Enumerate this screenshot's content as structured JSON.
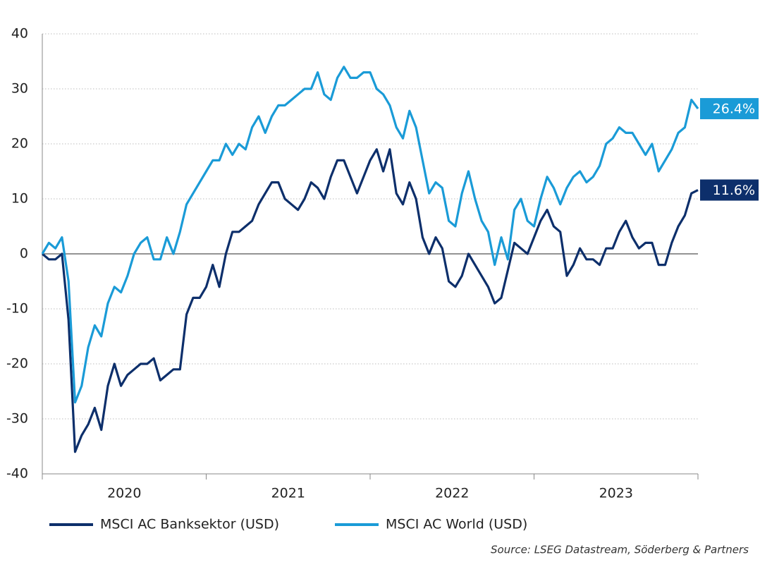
{
  "chart_data": {
    "type": "line",
    "source": "Source: LSEG Datastream, Söderberg & Partners",
    "xlim": [
      2020,
      2024
    ],
    "xticks": [
      2020,
      2021,
      2022,
      2023,
      2024
    ],
    "year_labels": [
      {
        "value": 2020.5,
        "label": "2020"
      },
      {
        "value": 2021.5,
        "label": "2021"
      },
      {
        "value": 2022.5,
        "label": "2022"
      },
      {
        "value": 2023.5,
        "label": "2023"
      }
    ],
    "ylim": [
      -40,
      40
    ],
    "yticks": [
      -40,
      -30,
      -20,
      -10,
      0,
      10,
      20,
      30,
      40
    ],
    "grid": true,
    "x": [
      2020.0,
      2020.04,
      2020.08,
      2020.12,
      2020.16,
      2020.2,
      2020.24,
      2020.28,
      2020.32,
      2020.36,
      2020.4,
      2020.44,
      2020.48,
      2020.52,
      2020.56,
      2020.6,
      2020.64,
      2020.68,
      2020.72,
      2020.76,
      2020.8,
      2020.84,
      2020.88,
      2020.92,
      2020.96,
      2021.0,
      2021.04,
      2021.08,
      2021.12,
      2021.16,
      2021.2,
      2021.24,
      2021.28,
      2021.32,
      2021.36,
      2021.4,
      2021.44,
      2021.48,
      2021.52,
      2021.56,
      2021.6,
      2021.64,
      2021.68,
      2021.72,
      2021.76,
      2021.8,
      2021.84,
      2021.88,
      2021.92,
      2021.96,
      2022.0,
      2022.04,
      2022.08,
      2022.12,
      2022.16,
      2022.2,
      2022.24,
      2022.28,
      2022.32,
      2022.36,
      2022.4,
      2022.44,
      2022.48,
      2022.52,
      2022.56,
      2022.6,
      2022.64,
      2022.68,
      2022.72,
      2022.76,
      2022.8,
      2022.84,
      2022.88,
      2022.92,
      2022.96,
      2023.0,
      2023.04,
      2023.08,
      2023.12,
      2023.16,
      2023.2,
      2023.24,
      2023.28,
      2023.32,
      2023.36,
      2023.4,
      2023.44,
      2023.48,
      2023.52,
      2023.56,
      2023.6,
      2023.64,
      2023.68,
      2023.72,
      2023.76,
      2023.8,
      2023.84,
      2023.88,
      2023.92,
      2023.96,
      2024.0
    ],
    "series": [
      {
        "name": "MSCI AC Banksektor (USD)",
        "color": "#0d2f6b",
        "end_label": "11.6%",
        "values": [
          0,
          -1,
          -1,
          0,
          -12,
          -36,
          -33,
          -31,
          -28,
          -32,
          -24,
          -20,
          -24,
          -22,
          -21,
          -20,
          -20,
          -19,
          -23,
          -22,
          -21,
          -21,
          -11,
          -8,
          -8,
          -6,
          -2,
          -6,
          0,
          4,
          4,
          5,
          6,
          9,
          11,
          13,
          13,
          10,
          9,
          8,
          10,
          13,
          12,
          10,
          14,
          17,
          17,
          14,
          11,
          14,
          17,
          19,
          15,
          19,
          11,
          9,
          13,
          10,
          3,
          0,
          3,
          1,
          -5,
          -6,
          -4,
          0,
          -2,
          -4,
          -6,
          -9,
          -8,
          -3,
          2,
          1,
          0,
          3,
          6,
          8,
          5,
          4,
          -4,
          -2,
          1,
          -1,
          -1,
          -2,
          1,
          1,
          4,
          6,
          3,
          1,
          2,
          2,
          -2,
          -2,
          2,
          5,
          7,
          11,
          11.6
        ]
      },
      {
        "name": "MSCI AC World (USD)",
        "color": "#1a9bd7",
        "end_label": "26.4%",
        "values": [
          0,
          2,
          1,
          3,
          -5,
          -27,
          -24,
          -17,
          -13,
          -15,
          -9,
          -6,
          -7,
          -4,
          0,
          2,
          3,
          -1,
          -1,
          3,
          0,
          4,
          9,
          11,
          13,
          15,
          17,
          17,
          20,
          18,
          20,
          19,
          23,
          25,
          22,
          25,
          27,
          27,
          28,
          29,
          30,
          30,
          33,
          29,
          28,
          32,
          34,
          32,
          32,
          33,
          33,
          30,
          29,
          27,
          23,
          21,
          26,
          23,
          17,
          11,
          13,
          12,
          6,
          5,
          11,
          15,
          10,
          6,
          4,
          -2,
          3,
          -1,
          8,
          10,
          6,
          5,
          10,
          14,
          12,
          9,
          12,
          14,
          15,
          13,
          14,
          16,
          20,
          21,
          23,
          22,
          22,
          20,
          18,
          20,
          15,
          17,
          19,
          22,
          23,
          28,
          26.4
        ]
      }
    ]
  }
}
